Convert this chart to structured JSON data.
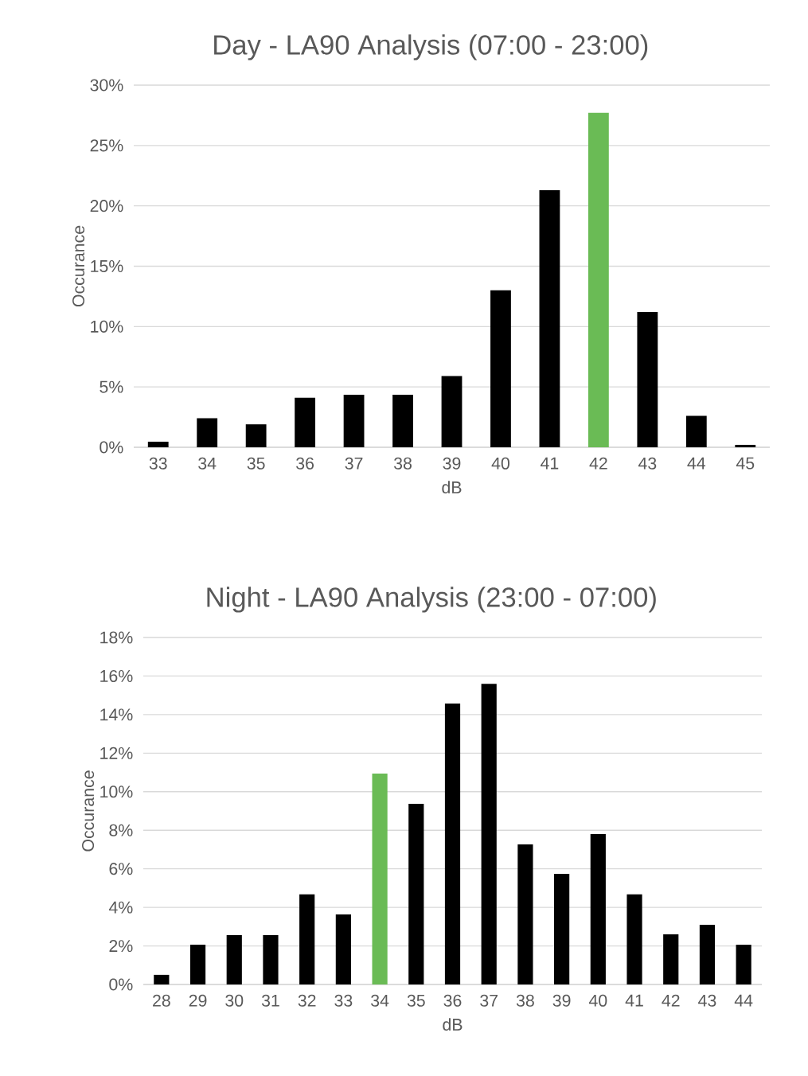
{
  "chart_data": [
    {
      "type": "bar",
      "title": "Day - LA90 Analysis (07:00 - 23:00)",
      "xlabel": "dB",
      "ylabel": "Occurance",
      "categories": [
        "33",
        "34",
        "35",
        "36",
        "37",
        "38",
        "39",
        "40",
        "41",
        "42",
        "43",
        "44",
        "45"
      ],
      "values": [
        0.46,
        2.4,
        1.9,
        4.1,
        4.35,
        4.35,
        5.9,
        13.0,
        21.3,
        27.7,
        11.2,
        2.6,
        0.2
      ],
      "colors": [
        "#000000",
        "#000000",
        "#000000",
        "#000000",
        "#000000",
        "#000000",
        "#000000",
        "#000000",
        "#000000",
        "#6abb55",
        "#000000",
        "#000000",
        "#000000"
      ],
      "ylim": [
        0,
        30
      ],
      "yticks": [
        {
          "value": 0,
          "label": "0%"
        },
        {
          "value": 5,
          "label": "5%"
        },
        {
          "value": 10,
          "label": "10%"
        },
        {
          "value": 15,
          "label": "15%"
        },
        {
          "value": 20,
          "label": "20%"
        },
        {
          "value": 25,
          "label": "25%"
        },
        {
          "value": 30,
          "label": "30%"
        }
      ],
      "grid": "y"
    },
    {
      "type": "bar",
      "title": "Night - LA90 Analysis (23:00 - 07:00)",
      "xlabel": "dB",
      "ylabel": "Occurance",
      "categories": [
        "28",
        "29",
        "30",
        "31",
        "32",
        "33",
        "34",
        "35",
        "36",
        "37",
        "38",
        "39",
        "40",
        "41",
        "42",
        "43",
        "44"
      ],
      "values": [
        0.5,
        2.06,
        2.56,
        2.56,
        4.67,
        3.63,
        10.94,
        9.37,
        14.57,
        15.6,
        7.27,
        5.74,
        7.8,
        4.67,
        2.6,
        3.1,
        2.06
      ],
      "colors": [
        "#000000",
        "#000000",
        "#000000",
        "#000000",
        "#000000",
        "#000000",
        "#6abb55",
        "#000000",
        "#000000",
        "#000000",
        "#000000",
        "#000000",
        "#000000",
        "#000000",
        "#000000",
        "#000000",
        "#000000"
      ],
      "ylim": [
        0,
        18
      ],
      "yticks": [
        {
          "value": 0,
          "label": "0%"
        },
        {
          "value": 2,
          "label": "2%"
        },
        {
          "value": 4,
          "label": "4%"
        },
        {
          "value": 6,
          "label": "6%"
        },
        {
          "value": 8,
          "label": "8%"
        },
        {
          "value": 10,
          "label": "10%"
        },
        {
          "value": 12,
          "label": "12%"
        },
        {
          "value": 14,
          "label": "14%"
        },
        {
          "value": 16,
          "label": "16%"
        },
        {
          "value": 18,
          "label": "18%"
        }
      ],
      "grid": "y"
    }
  ]
}
